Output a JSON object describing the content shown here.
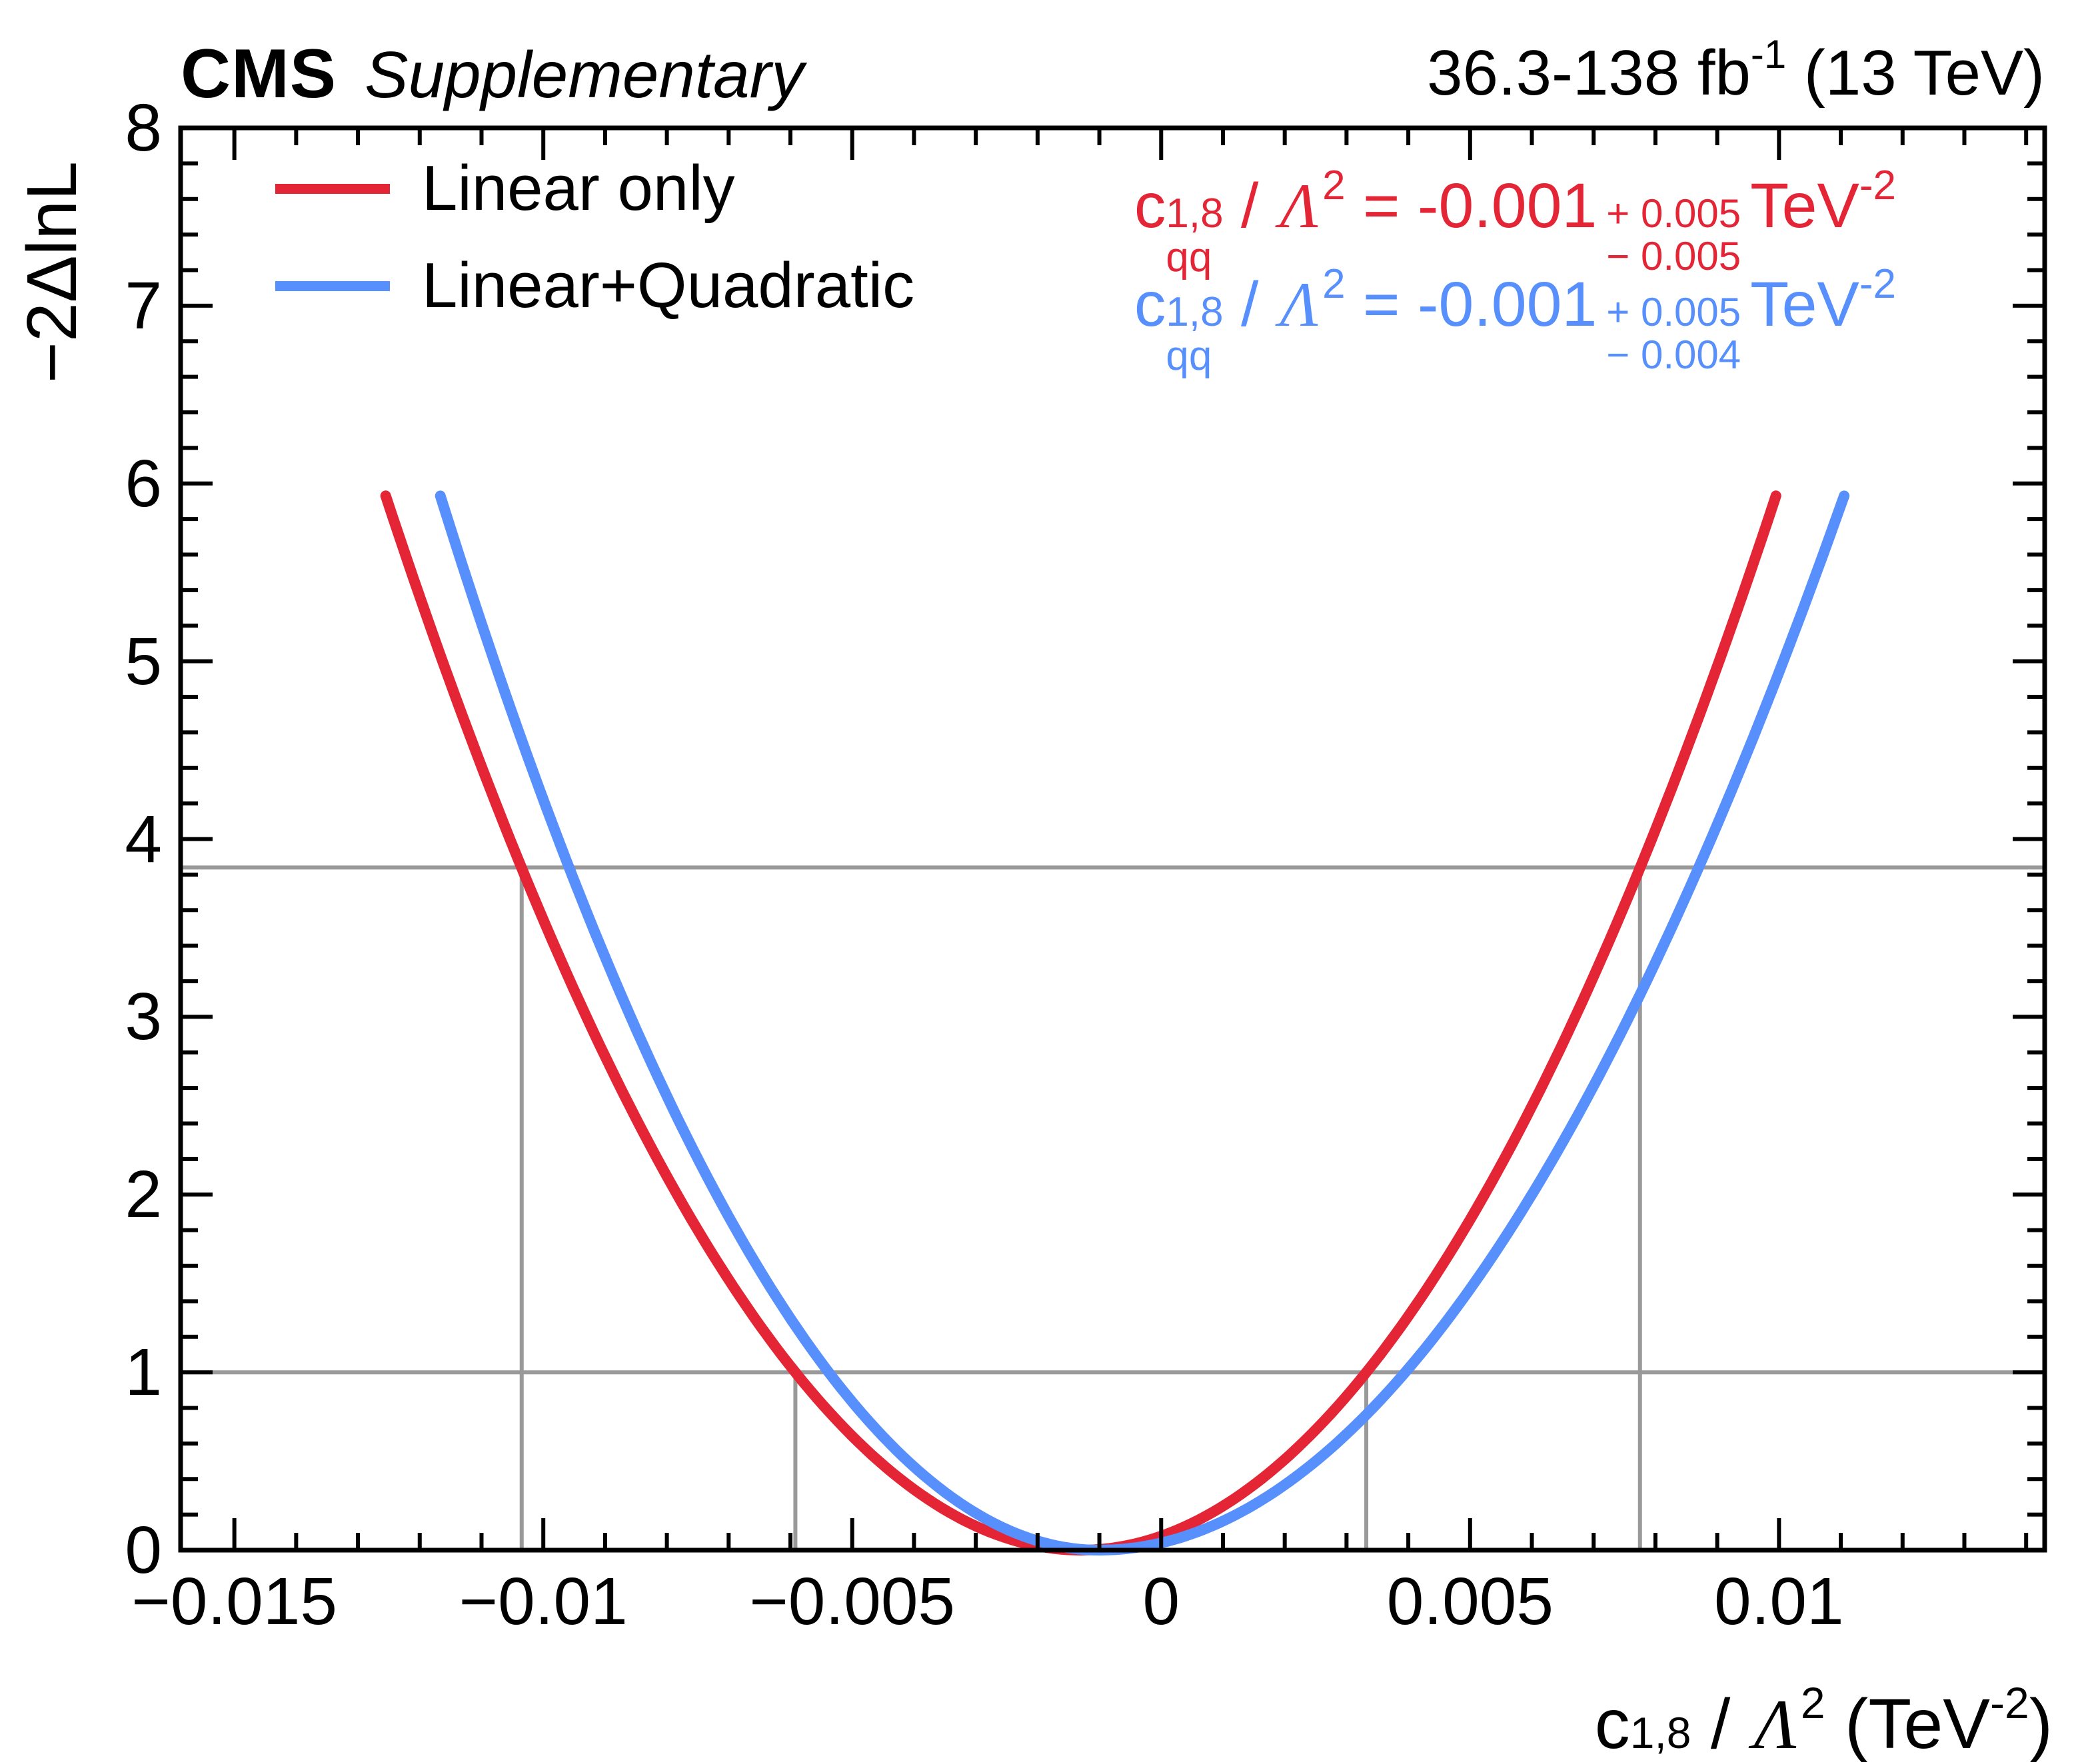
{
  "header": {
    "experiment": "CMS",
    "sublabel": "Supplementary",
    "lumi_prefix": "36.3-138 fb",
    "lumi_sup": "-1",
    "lumi_suffix": " (13 TeV)"
  },
  "axes": {
    "y_title": "−2ΔlnL",
    "x_ticks": [
      {
        "v": -0.015,
        "label": "−0.015"
      },
      {
        "v": -0.01,
        "label": "−0.01"
      },
      {
        "v": -0.005,
        "label": "−0.005"
      },
      {
        "v": 0,
        "label": "0"
      },
      {
        "v": 0.005,
        "label": "0.005"
      },
      {
        "v": 0.01,
        "label": "0.01"
      }
    ],
    "y_ticks": [
      {
        "v": 0,
        "label": "0"
      },
      {
        "v": 1,
        "label": "1"
      },
      {
        "v": 2,
        "label": "2"
      },
      {
        "v": 3,
        "label": "3"
      },
      {
        "v": 4,
        "label": "4"
      },
      {
        "v": 5,
        "label": "5"
      },
      {
        "v": 6,
        "label": "6"
      },
      {
        "v": 7,
        "label": "7"
      },
      {
        "v": 8,
        "label": "8"
      }
    ],
    "x_minor_step": 0.001,
    "y_minor_step": 0.2,
    "x_title": {
      "coeff_base": "c",
      "coeff_sup": "1,8",
      "coeff_sub": "qq",
      "slash": " / ",
      "lambda": "Λ",
      "lambda_sup": "2",
      "unit_open": " (TeV",
      "unit_sup": "-2",
      "unit_close": ")"
    }
  },
  "legend": {
    "items": [
      {
        "name": "Linear only",
        "color": "#e42536"
      },
      {
        "name": "Linear+Quadratic",
        "color": "#5790fc"
      }
    ]
  },
  "annotations": [
    {
      "color": "#e42536",
      "coeff_base": "c",
      "coeff_sup": "1,8",
      "coeff_sub": "qq",
      "slash": " / ",
      "lambda": "Λ",
      "lambda_sup": "2",
      "eq": " = ",
      "value": "-0.001",
      "err_up": "+ 0.005",
      "err_down": "− 0.005",
      "unit": "TeV",
      "unit_sup": "-2"
    },
    {
      "color": "#5790fc",
      "coeff_base": "c",
      "coeff_sup": "1,8",
      "coeff_sub": "qq",
      "slash": " / ",
      "lambda": "Λ",
      "lambda_sup": "2",
      "eq": " = ",
      "value": "-0.001",
      "err_up": "+ 0.005",
      "err_down": "− 0.004",
      "unit": "TeV",
      "unit_sup": "-2"
    }
  ],
  "chart_data": {
    "type": "line",
    "title": "CMS Supplementary likelihood scan",
    "xlabel": "c_qq^{1,8} / Λ^2 (TeV^-2)",
    "ylabel": "−2ΔlnL",
    "lumi": "36.3-138 fb^-1 (13 TeV)",
    "xlim": [
      -0.01587,
      0.0143
    ],
    "ylim": [
      0,
      8
    ],
    "grid": false,
    "legend_position": "top-left",
    "guide_color": "#999999",
    "series": [
      {
        "name": "Linear only",
        "color": "#e42536",
        "shape": "parabola",
        "min_x": -0.0013,
        "min_y": 0,
        "sigma_left": 0.00462,
        "sigma_right": 0.00462,
        "x_start": -0.012551,
        "x_end": 0.009951,
        "y_end": 5.93
      },
      {
        "name": "Linear+Quadratic",
        "color": "#5790fc",
        "shape": "parabola",
        "min_x": -0.001,
        "min_y": 0,
        "sigma_left": 0.00438,
        "sigma_right": 0.00495,
        "x_start": -0.011666,
        "x_end": 0.011054,
        "y_end": 5.93
      }
    ],
    "guides": {
      "horizontal_lines": [
        {
          "y": 1.0
        },
        {
          "y": 3.84
        }
      ],
      "vertical_lines": [
        {
          "x": -0.01035,
          "from_y": 3.84
        },
        {
          "x": -0.00592,
          "from_y": 1.0
        },
        {
          "x": 0.00332,
          "from_y": 1.0
        },
        {
          "x": 0.00775,
          "from_y": 3.84
        }
      ]
    },
    "results": [
      {
        "series": "Linear only",
        "central": -0.001,
        "err_up": 0.005,
        "err_down": 0.005,
        "unit": "TeV^-2"
      },
      {
        "series": "Linear+Quadratic",
        "central": -0.001,
        "err_up": 0.005,
        "err_down": 0.004,
        "unit": "TeV^-2"
      }
    ]
  }
}
